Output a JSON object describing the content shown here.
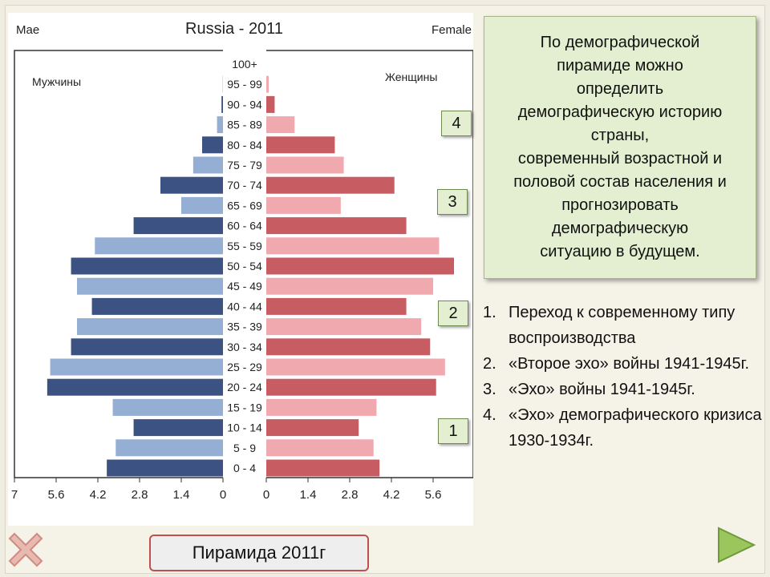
{
  "slide": {
    "info_text": "По демографической\nпирамиде можно\nопределить\nдемографическую историю\nстраны,\nсовременный возрастной и\nполовой состав населения и\nпрогнозировать\nдемографическую\nситуацию в будущем.",
    "markers": [
      "4",
      "3",
      "2",
      "1"
    ],
    "list": [
      {
        "num": "1.",
        "text": "Переход к современному типу воспроизводства"
      },
      {
        "num": "2.",
        "text": "«Второе эхо» войны 1941-1945г."
      },
      {
        "num": "3.",
        "text": "«Эхо» войны 1941-1945г."
      },
      {
        "num": "4.",
        "text": "«Эхо» демографического кризиса 1930-1934г."
      }
    ],
    "caption": "Пирамида 2011г",
    "colors": {
      "male_dark": "#3b5282",
      "male_light": "#95aed3",
      "female_dark": "#c75c63",
      "female_light": "#f0a9ae",
      "caption_border": "#c0504d",
      "info_bg": "#e3efd0"
    },
    "icons": {
      "prev": "close-x-icon",
      "next": "play-arrow-icon"
    }
  },
  "chart_data": {
    "type": "bar",
    "title": "Russia - 2011",
    "left_label": "Mae",
    "right_label": "Female",
    "male_label": "Мужчины",
    "female_label": "Женщины",
    "categories": [
      "0 - 4",
      "5 - 9",
      "10 - 14",
      "15 - 19",
      "20 - 24",
      "25 - 29",
      "30 - 34",
      "35 - 39",
      "40 - 44",
      "45 - 49",
      "50 - 54",
      "55 - 59",
      "60 - 64",
      "65 - 69",
      "70 - 74",
      "75 - 79",
      "80 - 84",
      "85 - 89",
      "90 - 94",
      "95 - 99",
      "100+"
    ],
    "series": [
      {
        "name": "Мужчины",
        "values": [
          3.9,
          3.6,
          3.0,
          3.7,
          5.9,
          5.8,
          5.1,
          4.9,
          4.4,
          4.9,
          5.1,
          4.3,
          3.0,
          1.4,
          2.1,
          1.0,
          0.7,
          0.2,
          0.05,
          0.01,
          0.0
        ]
      },
      {
        "name": "Женщины",
        "values": [
          3.8,
          3.6,
          3.1,
          3.7,
          5.7,
          6.0,
          5.5,
          5.2,
          4.7,
          5.6,
          6.3,
          5.8,
          4.7,
          2.5,
          4.3,
          2.6,
          2.3,
          0.95,
          0.28,
          0.08,
          0.0
        ]
      }
    ],
    "male_xticks": [
      "7",
      "5.6",
      "4.2",
      "2.8",
      "1.4",
      "0"
    ],
    "female_xticks": [
      "0",
      "1.4",
      "2.8",
      "4.2",
      "5.6"
    ],
    "xlim": [
      0,
      7
    ],
    "alternate_shading": [
      "dark",
      "light"
    ]
  }
}
